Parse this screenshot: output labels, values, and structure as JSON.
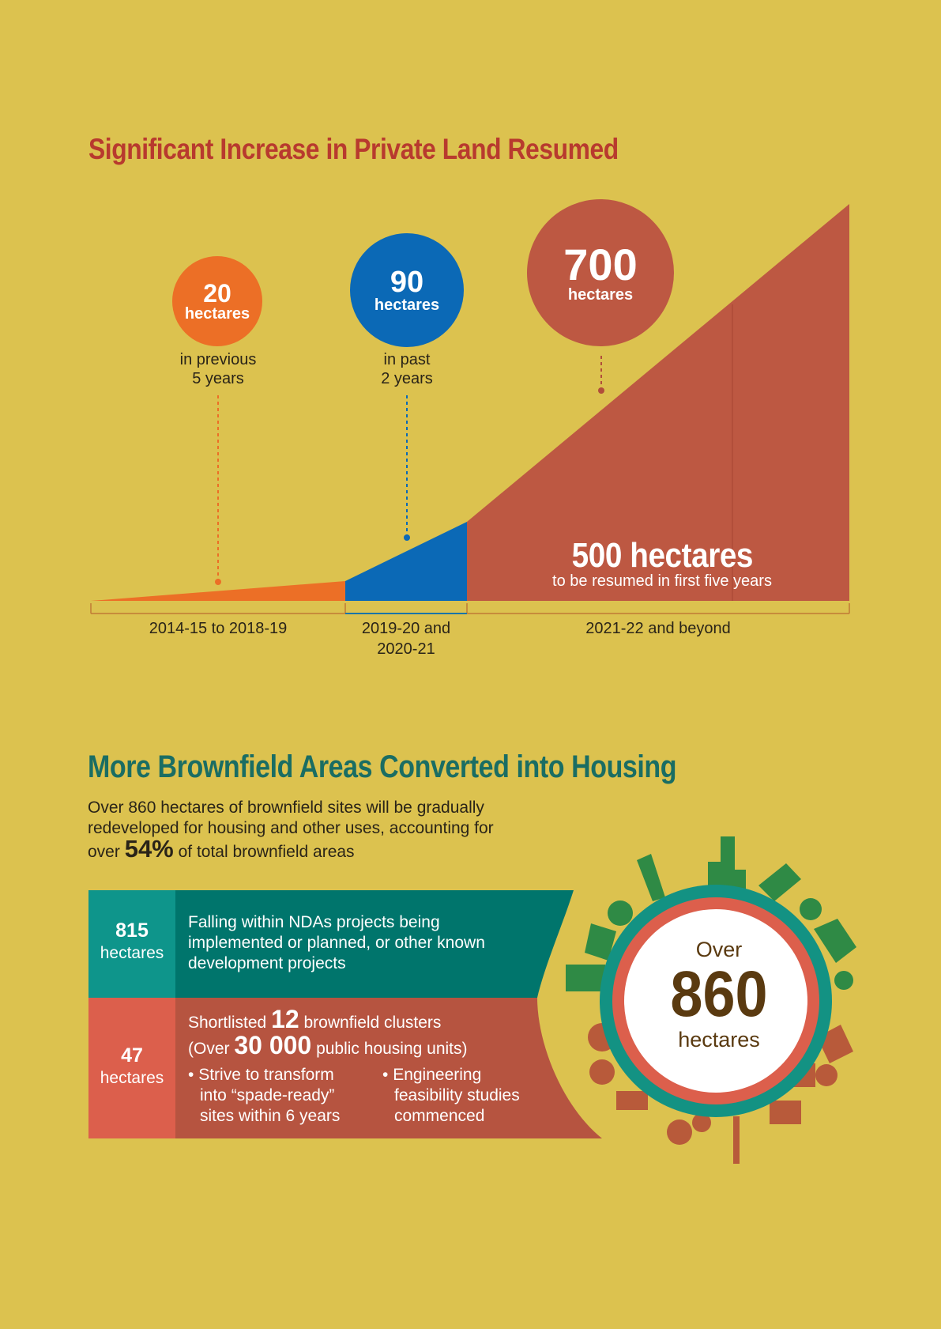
{
  "section1": {
    "title": "Significant Increase in Private Land Resumed",
    "bubbles": [
      {
        "value": "20",
        "unit": "hectares",
        "caption_line1": "in previous",
        "caption_line2": "5 years",
        "color": "#ec6f26"
      },
      {
        "value": "90",
        "unit": "hectares",
        "caption_line1": "in past",
        "caption_line2": "2 years",
        "color": "#0b69b6"
      },
      {
        "value": "700",
        "unit": "hectares",
        "color": "#bd5842"
      }
    ],
    "highlight": {
      "value": "500 hectares",
      "subtitle": "to be resumed in first five years"
    },
    "periods": [
      {
        "line1": "2014-15 to 2018-19",
        "line2": ""
      },
      {
        "line1": "2019-20 and",
        "line2": "2020-21"
      },
      {
        "line1": "2021-22 and beyond",
        "line2": ""
      }
    ]
  },
  "section2": {
    "title": "More Brownfield Areas Converted into Housing",
    "intro_line1": "Over 860 hectares of brownfield sites will be gradually",
    "intro_line2": "redeveloped for housing and other uses, accounting for",
    "intro_pre": "over",
    "intro_pct": "54%",
    "intro_post": "of total brownfield areas",
    "rows": [
      {
        "value": "815",
        "unit": "hectares",
        "text_line1": "Falling within NDAs projects being",
        "text_line2": "implemented or planned, or other known",
        "text_line3": "development projects",
        "num_color": "#0e958b",
        "text_color": "#00756c"
      },
      {
        "value": "47",
        "unit": "hectares",
        "a_pre": "Shortlisted",
        "a_num": "12",
        "a_post": "brownfield clusters",
        "b_pre": "(Over",
        "b_num": "30 000",
        "b_post": "public housing units)",
        "bullet1_line1": "Strive to transform",
        "bullet1_line2": "into “spade-ready”",
        "bullet1_line3": "sites within 6 years",
        "bullet2_line1": "Engineering",
        "bullet2_line2": "feasibility studies",
        "bullet2_line3": "commenced",
        "num_color": "#dc5f4c",
        "text_color": "#b65440"
      }
    ],
    "ring": {
      "over": "Over",
      "value": "860",
      "unit": "hectares"
    }
  }
}
